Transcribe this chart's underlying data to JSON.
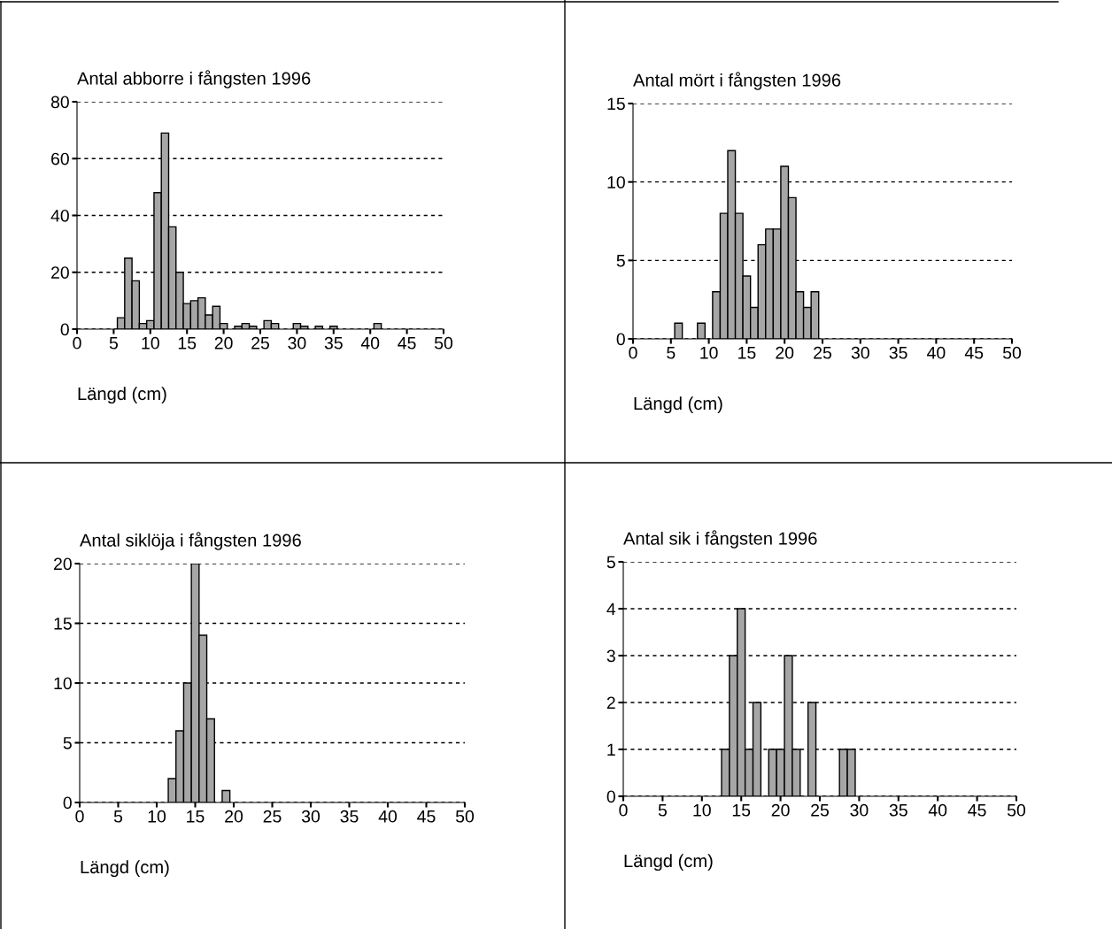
{
  "chart_data": [
    {
      "type": "histogram",
      "title": "Antal abborre i fångsten 1996",
      "xlabel": "Längd (cm)",
      "color": "#a6a6a6",
      "bins": [
        5.5,
        6.5,
        7.5,
        8.5,
        9.5,
        10.5,
        11.5,
        12.5,
        13.5,
        14.5,
        15.5,
        16.5,
        17.5,
        18.5,
        19.5,
        20.5,
        21.5,
        22.5,
        23.5,
        24.5,
        25.5,
        26.5,
        27.5,
        28.5,
        29.5,
        30.5,
        31.5,
        32.5,
        33.5,
        34.5,
        35.5,
        36.5,
        37.5,
        38.5,
        39.5,
        40.5,
        41.5
      ],
      "values": [
        4,
        25,
        17,
        2,
        3,
        48,
        69,
        36,
        20,
        9,
        10,
        11,
        5,
        8,
        2,
        0,
        1,
        2,
        1,
        0,
        3,
        2,
        0,
        0,
        2,
        1,
        0,
        1,
        0,
        1,
        0,
        0,
        0,
        0,
        0,
        2
      ],
      "xlim": [
        0,
        50
      ],
      "xticks": [
        0,
        5,
        10,
        15,
        20,
        25,
        30,
        35,
        40,
        45,
        50
      ],
      "ylim": [
        0,
        80
      ],
      "yticks": [
        0,
        20,
        40,
        60,
        80
      ],
      "grid": "y"
    },
    {
      "type": "histogram",
      "title": "Antal mört i fångsten 1996",
      "xlabel": "Längd (cm)",
      "color": "#a6a6a6",
      "bins": [
        5.5,
        6.5,
        7.5,
        8.5,
        9.5,
        10.5,
        11.5,
        12.5,
        13.5,
        14.5,
        15.5,
        16.5,
        17.5,
        18.5,
        19.5,
        20.5,
        21.5,
        22.5,
        23.5,
        24.5
      ],
      "values": [
        1,
        0,
        0,
        1,
        0,
        3,
        8,
        12,
        8,
        4,
        2,
        6,
        7,
        7,
        11,
        9,
        3,
        2,
        3
      ],
      "xlim": [
        0,
        50
      ],
      "xticks": [
        0,
        5,
        10,
        15,
        20,
        25,
        30,
        35,
        40,
        45,
        50
      ],
      "ylim": [
        0,
        15
      ],
      "yticks": [
        0,
        5,
        10,
        15
      ],
      "grid": "y"
    },
    {
      "type": "histogram",
      "title": "Antal siklöja i fångsten 1996",
      "xlabel": "Längd (cm)",
      "color": "#a6a6a6",
      "bins": [
        11.5,
        12.5,
        13.5,
        14.5,
        15.5,
        16.5,
        17.5,
        18.5,
        19.5
      ],
      "values": [
        2,
        6,
        10,
        20,
        14,
        7,
        0,
        1
      ],
      "xlim": [
        0,
        50
      ],
      "xticks": [
        0,
        5,
        10,
        15,
        20,
        25,
        30,
        35,
        40,
        45,
        50
      ],
      "ylim": [
        0,
        20
      ],
      "yticks": [
        0,
        5,
        10,
        15,
        20
      ],
      "grid": "y"
    },
    {
      "type": "histogram",
      "title": "Antal sik i fångsten 1996",
      "xlabel": "Längd (cm)",
      "color": "#a6a6a6",
      "bins": [
        12.5,
        13.5,
        14.5,
        15.5,
        16.5,
        17.5,
        18.5,
        19.5,
        20.5,
        21.5,
        22.5,
        23.5,
        24.5,
        25.5,
        26.5,
        27.5,
        28.5,
        29.5
      ],
      "values": [
        1,
        3,
        4,
        1,
        2,
        0,
        1,
        1,
        3,
        1,
        0,
        2,
        0,
        0,
        0,
        1,
        1
      ],
      "xlim": [
        0,
        50
      ],
      "xticks": [
        0,
        5,
        10,
        15,
        20,
        25,
        30,
        35,
        40,
        45,
        50
      ],
      "ylim": [
        0,
        5
      ],
      "yticks": [
        0,
        1,
        2,
        3,
        4,
        5
      ],
      "grid": "y"
    }
  ]
}
